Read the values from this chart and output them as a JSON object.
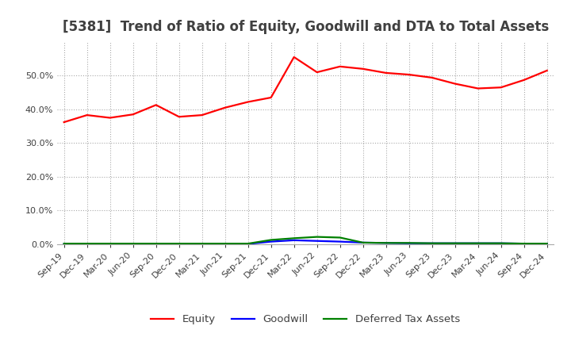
{
  "title": "[5381]  Trend of Ratio of Equity, Goodwill and DTA to Total Assets",
  "x_labels": [
    "Sep-19",
    "Dec-19",
    "Mar-20",
    "Jun-20",
    "Sep-20",
    "Dec-20",
    "Mar-21",
    "Jun-21",
    "Sep-21",
    "Dec-21",
    "Mar-22",
    "Jun-22",
    "Sep-22",
    "Dec-22",
    "Mar-23",
    "Jun-23",
    "Sep-23",
    "Dec-23",
    "Mar-24",
    "Jun-24",
    "Sep-24",
    "Dec-24"
  ],
  "equity": [
    0.362,
    0.383,
    0.375,
    0.385,
    0.413,
    0.378,
    0.383,
    0.405,
    0.422,
    0.435,
    0.555,
    0.51,
    0.527,
    0.52,
    0.508,
    0.503,
    0.494,
    0.476,
    0.462,
    0.465,
    0.487,
    0.515
  ],
  "goodwill": [
    0.001,
    0.001,
    0.001,
    0.001,
    0.001,
    0.001,
    0.001,
    0.001,
    0.001,
    0.008,
    0.012,
    0.01,
    0.008,
    0.005,
    0.004,
    0.003,
    0.003,
    0.003,
    0.003,
    0.003,
    0.002,
    0.002
  ],
  "dta": [
    0.002,
    0.002,
    0.002,
    0.002,
    0.002,
    0.002,
    0.002,
    0.002,
    0.002,
    0.013,
    0.018,
    0.022,
    0.02,
    0.005,
    0.004,
    0.004,
    0.003,
    0.003,
    0.003,
    0.003,
    0.002,
    0.002
  ],
  "equity_color": "#FF0000",
  "goodwill_color": "#0000FF",
  "dta_color": "#008000",
  "bg_color": "#FFFFFF",
  "plot_bg_color": "#FFFFFF",
  "grid_color": "#AAAAAA",
  "text_color": "#404040",
  "ylim": [
    0.0,
    0.6
  ],
  "yticks": [
    0.0,
    0.1,
    0.2,
    0.3,
    0.4,
    0.5
  ],
  "title_fontsize": 12,
  "legend_fontsize": 9.5,
  "tick_fontsize": 8
}
